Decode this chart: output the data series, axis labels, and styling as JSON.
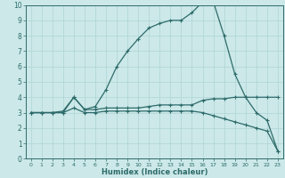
{
  "xlabel": "Humidex (Indice chaleur)",
  "bg_color": "#cce8e8",
  "line_color": "#2e6b6b",
  "grid_color": "#afd4d4",
  "xlim": [
    -0.5,
    23.5
  ],
  "ylim": [
    0,
    10
  ],
  "xticks": [
    0,
    1,
    2,
    3,
    4,
    5,
    6,
    7,
    8,
    9,
    10,
    11,
    12,
    13,
    14,
    15,
    16,
    17,
    18,
    19,
    20,
    21,
    22,
    23
  ],
  "yticks": [
    0,
    1,
    2,
    3,
    4,
    5,
    6,
    7,
    8,
    9,
    10
  ],
  "series": [
    {
      "x": [
        0,
        1,
        2,
        3,
        4,
        5,
        6,
        7,
        8,
        9,
        10,
        11,
        12,
        13,
        14,
        15,
        16,
        17,
        18,
        19,
        20,
        21,
        22,
        23
      ],
      "y": [
        3,
        3,
        3,
        3,
        4,
        3.2,
        3.2,
        3.3,
        3.3,
        3.3,
        3.3,
        3.4,
        3.5,
        3.5,
        3.5,
        3.5,
        3.8,
        3.9,
        3.9,
        4,
        4,
        4,
        4,
        4
      ]
    },
    {
      "x": [
        0,
        1,
        2,
        3,
        4,
        5,
        6,
        7,
        8,
        9,
        10,
        11,
        12,
        13,
        14,
        15,
        16,
        17,
        18,
        19,
        20,
        21,
        22,
        23
      ],
      "y": [
        3,
        3,
        3,
        3.1,
        4,
        3.2,
        3.4,
        4.5,
        6,
        7,
        7.8,
        8.5,
        8.8,
        9,
        9,
        9.5,
        10.2,
        10.2,
        8,
        5.5,
        4,
        3,
        2.5,
        0.5
      ]
    },
    {
      "x": [
        0,
        1,
        2,
        3,
        4,
        5,
        6,
        7,
        8,
        9,
        10,
        11,
        12,
        13,
        14,
        15,
        16,
        17,
        18,
        19,
        20,
        21,
        22,
        23
      ],
      "y": [
        3,
        3,
        3,
        3,
        3.3,
        3.0,
        3.0,
        3.1,
        3.1,
        3.1,
        3.1,
        3.1,
        3.1,
        3.1,
        3.1,
        3.1,
        3.0,
        2.8,
        2.6,
        2.4,
        2.2,
        2.0,
        1.8,
        0.5
      ]
    }
  ]
}
